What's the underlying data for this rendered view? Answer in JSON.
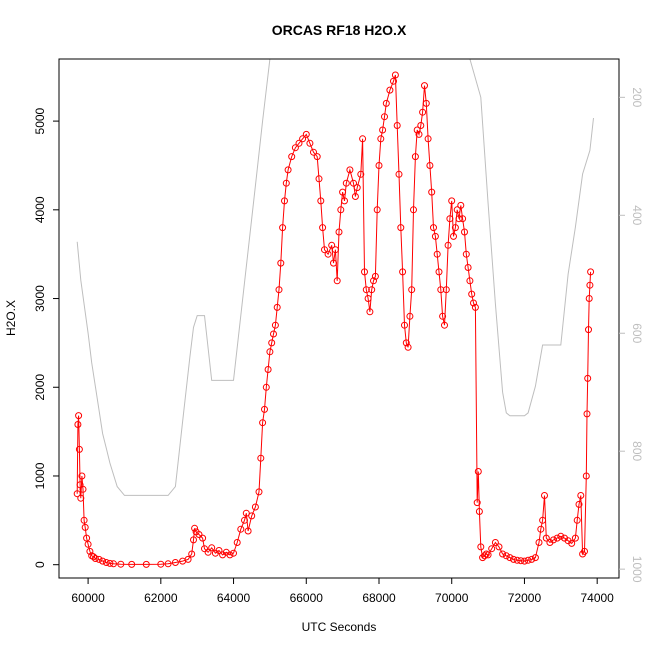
{
  "chart_data": {
    "type": "scatter",
    "title": "ORCAS RF18 H2O.X",
    "xlabel": "UTC Seconds",
    "ylabel": "H2O.X",
    "xlim": [
      59200,
      74600
    ],
    "ylim": [
      -150,
      5700
    ],
    "x_ticks": [
      {
        "value": 60000,
        "label": "60000"
      },
      {
        "value": 62000,
        "label": "62000"
      },
      {
        "value": 64000,
        "label": "64000"
      },
      {
        "value": 66000,
        "label": "66000"
      },
      {
        "value": 68000,
        "label": "68000"
      },
      {
        "value": 70000,
        "label": "70000"
      },
      {
        "value": 72000,
        "label": "72000"
      },
      {
        "value": 74000,
        "label": "74000"
      }
    ],
    "y_ticks": [
      {
        "value": 0,
        "label": "0"
      },
      {
        "value": 1000,
        "label": "1000"
      },
      {
        "value": 2000,
        "label": "2000"
      },
      {
        "value": 3000,
        "label": "3000"
      },
      {
        "value": 4000,
        "label": "4000"
      },
      {
        "value": 5000,
        "label": "5000"
      }
    ],
    "right_axis": {
      "reversed": true,
      "lim": [
        1015,
        135
      ],
      "ticks": [
        {
          "value": 200,
          "label": "200"
        },
        {
          "value": 400,
          "label": "400"
        },
        {
          "value": 600,
          "label": "600"
        },
        {
          "value": 800,
          "label": "800"
        },
        {
          "value": 1000,
          "label": "1000"
        }
      ]
    },
    "series": [
      {
        "color": "#ff0000",
        "style": "points+line",
        "points": [
          [
            59700,
            800
          ],
          [
            59720,
            1580
          ],
          [
            59740,
            1680
          ],
          [
            59760,
            1300
          ],
          [
            59780,
            900
          ],
          [
            59800,
            750
          ],
          [
            59830,
            1000
          ],
          [
            59860,
            850
          ],
          [
            59890,
            500
          ],
          [
            59920,
            420
          ],
          [
            59960,
            300
          ],
          [
            60000,
            230
          ],
          [
            60050,
            150
          ],
          [
            60100,
            100
          ],
          [
            60150,
            90
          ],
          [
            60200,
            70
          ],
          [
            60300,
            60
          ],
          [
            60400,
            40
          ],
          [
            60500,
            25
          ],
          [
            60600,
            15
          ],
          [
            60700,
            10
          ],
          [
            60900,
            5
          ],
          [
            61200,
            3
          ],
          [
            61600,
            3
          ],
          [
            62000,
            5
          ],
          [
            62200,
            10
          ],
          [
            62400,
            25
          ],
          [
            62600,
            40
          ],
          [
            62750,
            60
          ],
          [
            62850,
            120
          ],
          [
            62900,
            280
          ],
          [
            62930,
            410
          ],
          [
            62970,
            370
          ],
          [
            63050,
            340
          ],
          [
            63150,
            300
          ],
          [
            63200,
            180
          ],
          [
            63300,
            140
          ],
          [
            63400,
            190
          ],
          [
            63500,
            130
          ],
          [
            63600,
            160
          ],
          [
            63700,
            110
          ],
          [
            63800,
            140
          ],
          [
            63900,
            110
          ],
          [
            64000,
            130
          ],
          [
            64100,
            250
          ],
          [
            64200,
            400
          ],
          [
            64300,
            500
          ],
          [
            64350,
            580
          ],
          [
            64400,
            380
          ],
          [
            64500,
            550
          ],
          [
            64600,
            650
          ],
          [
            64700,
            820
          ],
          [
            64750,
            1200
          ],
          [
            64800,
            1600
          ],
          [
            64850,
            1750
          ],
          [
            64900,
            2000
          ],
          [
            64950,
            2200
          ],
          [
            65000,
            2400
          ],
          [
            65050,
            2500
          ],
          [
            65100,
            2600
          ],
          [
            65150,
            2700
          ],
          [
            65200,
            2900
          ],
          [
            65250,
            3100
          ],
          [
            65300,
            3400
          ],
          [
            65350,
            3800
          ],
          [
            65400,
            4100
          ],
          [
            65450,
            4300
          ],
          [
            65500,
            4450
          ],
          [
            65600,
            4600
          ],
          [
            65700,
            4700
          ],
          [
            65800,
            4750
          ],
          [
            65900,
            4800
          ],
          [
            66000,
            4850
          ],
          [
            66100,
            4750
          ],
          [
            66200,
            4650
          ],
          [
            66300,
            4600
          ],
          [
            66350,
            4350
          ],
          [
            66400,
            4100
          ],
          [
            66450,
            3800
          ],
          [
            66500,
            3550
          ],
          [
            66600,
            3500
          ],
          [
            66700,
            3600
          ],
          [
            66750,
            3400
          ],
          [
            66800,
            3550
          ],
          [
            66850,
            3200
          ],
          [
            66900,
            3750
          ],
          [
            66950,
            4000
          ],
          [
            67000,
            4200
          ],
          [
            67050,
            4100
          ],
          [
            67100,
            4300
          ],
          [
            67200,
            4450
          ],
          [
            67300,
            4300
          ],
          [
            67350,
            4150
          ],
          [
            67400,
            4250
          ],
          [
            67500,
            4400
          ],
          [
            67550,
            4800
          ],
          [
            67600,
            3300
          ],
          [
            67650,
            3100
          ],
          [
            67700,
            3000
          ],
          [
            67750,
            2850
          ],
          [
            67800,
            3100
          ],
          [
            67850,
            3200
          ],
          [
            67900,
            3250
          ],
          [
            67950,
            4000
          ],
          [
            68000,
            4500
          ],
          [
            68050,
            4800
          ],
          [
            68100,
            4900
          ],
          [
            68150,
            5050
          ],
          [
            68200,
            5200
          ],
          [
            68300,
            5350
          ],
          [
            68400,
            5450
          ],
          [
            68450,
            5520
          ],
          [
            68500,
            4950
          ],
          [
            68550,
            4400
          ],
          [
            68600,
            3800
          ],
          [
            68650,
            3300
          ],
          [
            68700,
            2700
          ],
          [
            68750,
            2500
          ],
          [
            68800,
            2450
          ],
          [
            68850,
            2800
          ],
          [
            68900,
            3100
          ],
          [
            68950,
            4000
          ],
          [
            69000,
            4600
          ],
          [
            69050,
            4900
          ],
          [
            69100,
            4850
          ],
          [
            69150,
            4950
          ],
          [
            69200,
            5100
          ],
          [
            69250,
            5400
          ],
          [
            69300,
            5200
          ],
          [
            69350,
            4800
          ],
          [
            69400,
            4500
          ],
          [
            69450,
            4200
          ],
          [
            69500,
            3800
          ],
          [
            69550,
            3700
          ],
          [
            69600,
            3500
          ],
          [
            69650,
            3300
          ],
          [
            69700,
            3100
          ],
          [
            69750,
            2800
          ],
          [
            69800,
            2700
          ],
          [
            69850,
            3100
          ],
          [
            69900,
            3600
          ],
          [
            69950,
            3900
          ],
          [
            70000,
            4100
          ],
          [
            70050,
            3700
          ],
          [
            70100,
            3800
          ],
          [
            70150,
            4000
          ],
          [
            70200,
            3900
          ],
          [
            70250,
            4050
          ],
          [
            70300,
            3900
          ],
          [
            70350,
            3750
          ],
          [
            70400,
            3500
          ],
          [
            70450,
            3350
          ],
          [
            70500,
            3200
          ],
          [
            70550,
            3050
          ],
          [
            70600,
            2950
          ],
          [
            70650,
            2900
          ],
          [
            70700,
            700
          ],
          [
            70730,
            1050
          ],
          [
            70760,
            600
          ],
          [
            70800,
            200
          ],
          [
            70850,
            80
          ],
          [
            70900,
            100
          ],
          [
            70950,
            120
          ],
          [
            71000,
            110
          ],
          [
            71100,
            180
          ],
          [
            71200,
            250
          ],
          [
            71300,
            200
          ],
          [
            71400,
            120
          ],
          [
            71500,
            100
          ],
          [
            71600,
            80
          ],
          [
            71700,
            60
          ],
          [
            71800,
            50
          ],
          [
            71900,
            45
          ],
          [
            72000,
            40
          ],
          [
            72100,
            50
          ],
          [
            72200,
            60
          ],
          [
            72300,
            80
          ],
          [
            72400,
            250
          ],
          [
            72450,
            400
          ],
          [
            72500,
            500
          ],
          [
            72550,
            780
          ],
          [
            72600,
            300
          ],
          [
            72700,
            250
          ],
          [
            72800,
            280
          ],
          [
            72900,
            300
          ],
          [
            73000,
            320
          ],
          [
            73100,
            300
          ],
          [
            73200,
            270
          ],
          [
            73300,
            240
          ],
          [
            73400,
            300
          ],
          [
            73450,
            500
          ],
          [
            73500,
            680
          ],
          [
            73550,
            780
          ],
          [
            73600,
            120
          ],
          [
            73650,
            150
          ],
          [
            73700,
            1000
          ],
          [
            73720,
            1700
          ],
          [
            73740,
            2100
          ],
          [
            73760,
            2650
          ],
          [
            73780,
            3000
          ],
          [
            73800,
            3150
          ],
          [
            73820,
            3300
          ]
        ]
      },
      {
        "color": "#bebebe",
        "style": "line",
        "axis": "right",
        "points": [
          [
            59700,
            445
          ],
          [
            59800,
            510
          ],
          [
            60000,
            600
          ],
          [
            60100,
            650
          ],
          [
            60300,
            730
          ],
          [
            60400,
            770
          ],
          [
            60500,
            795
          ],
          [
            60600,
            820
          ],
          [
            60800,
            860
          ],
          [
            61000,
            875
          ],
          [
            61500,
            875
          ],
          [
            62000,
            875
          ],
          [
            62200,
            875
          ],
          [
            62400,
            860
          ],
          [
            62600,
            750
          ],
          [
            62800,
            640
          ],
          [
            62900,
            590
          ],
          [
            63000,
            570
          ],
          [
            63200,
            570
          ],
          [
            63400,
            680
          ],
          [
            63600,
            680
          ],
          [
            63800,
            680
          ],
          [
            64000,
            680
          ],
          [
            64200,
            570
          ],
          [
            64400,
            460
          ],
          [
            64600,
            350
          ],
          [
            64800,
            240
          ],
          [
            65000,
            135
          ],
          [
            65200,
            135
          ],
          [
            66000,
            135
          ],
          [
            66700,
            135
          ],
          [
            67000,
            135
          ],
          [
            67200,
            135
          ],
          [
            67400,
            135
          ],
          [
            67600,
            135
          ],
          [
            67800,
            135
          ],
          [
            68000,
            135
          ],
          [
            68500,
            135
          ],
          [
            68700,
            135
          ],
          [
            69000,
            135
          ],
          [
            69600,
            135
          ],
          [
            70000,
            135
          ],
          [
            70500,
            135
          ],
          [
            70800,
            200
          ],
          [
            71000,
            380
          ],
          [
            71200,
            550
          ],
          [
            71400,
            700
          ],
          [
            71500,
            735
          ],
          [
            71600,
            740
          ],
          [
            72000,
            740
          ],
          [
            72100,
            735
          ],
          [
            72300,
            690
          ],
          [
            72500,
            620
          ],
          [
            72600,
            620
          ],
          [
            72800,
            620
          ],
          [
            73000,
            620
          ],
          [
            73200,
            500
          ],
          [
            73400,
            420
          ],
          [
            73600,
            330
          ],
          [
            73800,
            290
          ],
          [
            73900,
            235
          ]
        ]
      }
    ]
  }
}
